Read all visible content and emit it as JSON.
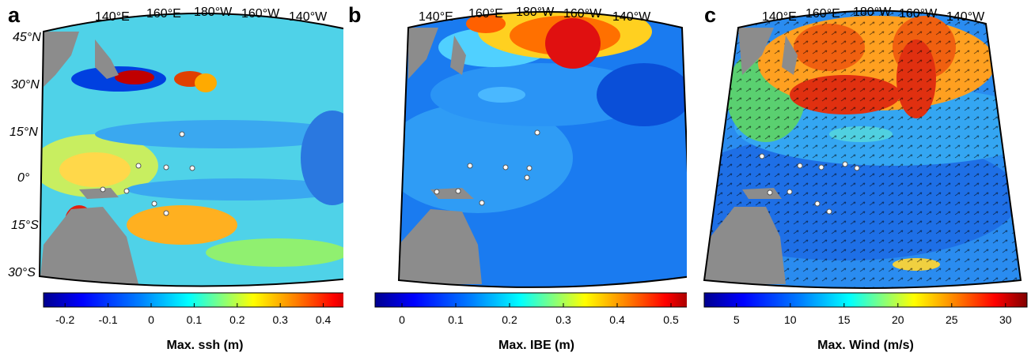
{
  "panels": [
    {
      "id": "a",
      "label": "a",
      "lon_labels": [
        "140°E",
        "160°E",
        "180°W",
        "160°W",
        "140°W"
      ],
      "lat_labels": [
        "45°N",
        "30°N",
        "15°N",
        "0°",
        "15°S",
        "30°S"
      ],
      "colorbar": {
        "title": "Max. ssh (m)",
        "ticks": [
          "-0.2",
          "-0.1",
          "0",
          "0.1",
          "0.2",
          "0.3",
          "0.4"
        ],
        "min": -0.25,
        "max": 0.5,
        "tick_values": [
          -0.2,
          -0.1,
          0,
          0.1,
          0.2,
          0.3,
          0.4
        ]
      }
    },
    {
      "id": "b",
      "label": "b",
      "lon_labels": [
        "140°E",
        "160°E",
        "180°W",
        "160°W",
        "140°W"
      ],
      "lat_labels": [],
      "colorbar": {
        "title": "Max. IBE (m)",
        "ticks": [
          "0",
          "0.1",
          "0.2",
          "0.3",
          "0.4",
          "0.5"
        ],
        "min": -0.05,
        "max": 0.55,
        "tick_values": [
          0,
          0.1,
          0.2,
          0.3,
          0.4,
          0.5
        ]
      }
    },
    {
      "id": "c",
      "label": "c",
      "lon_labels": [
        "140°E",
        "160°E",
        "180°W",
        "160°W",
        "140°W"
      ],
      "lat_labels": [],
      "colorbar": {
        "title": "Max. Wind (m/s)",
        "ticks": [
          "5",
          "10",
          "15",
          "20",
          "25",
          "30"
        ],
        "min": 2,
        "max": 32,
        "tick_values": [
          5,
          10,
          15,
          20,
          25,
          30
        ]
      }
    }
  ],
  "colors": {
    "land": "#8c8c8c",
    "jet": [
      "#00008f",
      "#0000ff",
      "#0080ff",
      "#00ffff",
      "#80ff80",
      "#ffff00",
      "#ff8000",
      "#ff0000",
      "#800000"
    ],
    "island_marker": "#ffffff"
  }
}
